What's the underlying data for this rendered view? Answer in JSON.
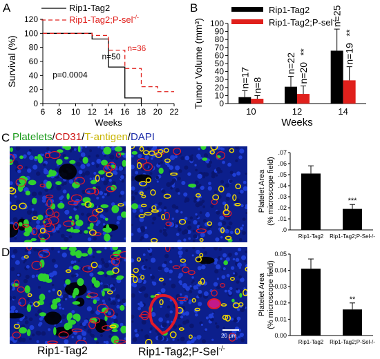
{
  "panel_labels": {
    "a": "A",
    "b": "B",
    "c": "C",
    "d": "D"
  },
  "stain_title": [
    {
      "text": "Platelets",
      "color": "#1a9a1a"
    },
    {
      "text": "/",
      "color": "#000000"
    },
    {
      "text": "CD31",
      "color": "#cc1111"
    },
    {
      "text": "/",
      "color": "#000000"
    },
    {
      "text": "T-antigen",
      "color": "#c8b400"
    },
    {
      "text": "/",
      "color": "#000000"
    },
    {
      "text": "DAPI",
      "color": "#1a2aa8"
    }
  ],
  "bottom_labels": {
    "left": "Rip1-Tag2",
    "right_base": "Rip1-Tag2;P-Sel",
    "right_sup": "-/-"
  },
  "scale_bar_text": "20 μm",
  "colors": {
    "rip1": "#000000",
    "psel": "#e0201c",
    "nuclei": "#0c1f8c",
    "platelets": "#2fd12f",
    "vessels": "#e01a2a",
    "tantigen": "#f0d800"
  },
  "chart_data": [
    {
      "type": "line",
      "id": "survival",
      "xlabel": "Weeks",
      "ylabel": "Survival  (%)",
      "xlim": [
        6,
        22
      ],
      "ylim": [
        0,
        120
      ],
      "xticks": [
        6,
        8,
        10,
        12,
        14,
        16,
        18,
        20,
        22
      ],
      "yticks": [
        0,
        20,
        40,
        60,
        80,
        100,
        120
      ],
      "legend": [
        {
          "name": "Rip1-Tag2",
          "style": "solid",
          "color": "#000000"
        },
        {
          "name": "Rip1-Tag2;P-sel",
          "sup": "-/-",
          "style": "dashed",
          "color": "#e0201c"
        }
      ],
      "series": [
        {
          "name": "Rip1-Tag2",
          "style": "solid",
          "color": "#000000",
          "points": [
            [
              6,
              100
            ],
            [
              12,
              100
            ],
            [
              12,
              92
            ],
            [
              14,
              92
            ],
            [
              14,
              52
            ],
            [
              16,
              52
            ],
            [
              16,
              8
            ],
            [
              18,
              8
            ],
            [
              18,
              0
            ]
          ]
        },
        {
          "name": "Rip1-Tag2;P-sel-/-",
          "style": "dashed",
          "color": "#e0201c",
          "points": [
            [
              6,
              100
            ],
            [
              12,
              100
            ],
            [
              12,
              97
            ],
            [
              14,
              97
            ],
            [
              14,
              76
            ],
            [
              16,
              76
            ],
            [
              16,
              50
            ],
            [
              18,
              50
            ],
            [
              18,
              24
            ],
            [
              20,
              24
            ],
            [
              20,
              17
            ],
            [
              22,
              17
            ]
          ]
        }
      ],
      "annotations": [
        {
          "text": "n=50",
          "x": 13.2,
          "y": 63,
          "color": "#000000"
        },
        {
          "text": "n=36",
          "x": 16.3,
          "y": 75,
          "color": "#e0201c"
        },
        {
          "text": "p=0.0004",
          "x": 7.2,
          "y": 37,
          "color": "#000000"
        }
      ]
    },
    {
      "type": "bar",
      "id": "tumor-volume",
      "xlabel": "Weeks",
      "ylabel": "Tumor Volume (mm³)",
      "categories": [
        "10",
        "12",
        "14"
      ],
      "ylim": [
        0,
        100
      ],
      "yticks": [
        0,
        10,
        20,
        30,
        40,
        50,
        60,
        70,
        80,
        90,
        100
      ],
      "legend": [
        {
          "name": "Rip1-Tag2",
          "color": "#000000"
        },
        {
          "name": "Rip1-Tag2;P-sel",
          "sup": "-/-",
          "color": "#e0201c"
        }
      ],
      "series": [
        {
          "name": "Rip1-Tag2",
          "color": "#000000",
          "values": [
            8,
            21,
            66
          ],
          "errors": [
            8,
            13,
            27
          ],
          "n_labels": [
            "n=17",
            "n=22",
            "n=25"
          ]
        },
        {
          "name": "Rip1-Tag2;P-sel-/-",
          "color": "#e0201c",
          "values": [
            6,
            12,
            29
          ],
          "errors": [
            4,
            10,
            17
          ],
          "n_labels": [
            "n=8",
            "n=20",
            "n=19"
          ],
          "sig": [
            "",
            "**",
            "**"
          ]
        }
      ]
    },
    {
      "type": "bar",
      "id": "platelet-area-c",
      "ylabel_lines": [
        "Platelet Area",
        "(% microscope field)"
      ],
      "categories": [
        "Rip1-Tag2",
        "Rip1-Tag2;P-Sel-/-"
      ],
      "values": [
        0.051,
        0.019
      ],
      "errors": [
        0.007,
        0.004
      ],
      "sig": [
        "",
        "***"
      ],
      "ylim": [
        0,
        0.07
      ],
      "yticks": [
        ".0",
        ".01",
        ".02",
        ".03",
        ".04",
        ".05",
        ".06",
        ".07"
      ],
      "colors": [
        "#000000",
        "#000000"
      ]
    },
    {
      "type": "bar",
      "id": "platelet-area-d",
      "ylabel_lines": [
        "Platelet Area",
        "(% microscope field)"
      ],
      "categories": [
        "Rip1-Tag2",
        "Rip1-Tag2;P-Sel-/-"
      ],
      "values": [
        0.041,
        0.016
      ],
      "errors": [
        0.006,
        0.004
      ],
      "sig": [
        "",
        "**"
      ],
      "ylim": [
        0,
        0.05
      ],
      "yticks": [
        "0.00",
        "0.01",
        "0.02",
        "0.03",
        "0.04",
        "0.05"
      ],
      "colors": [
        "#000000",
        "#000000"
      ]
    }
  ]
}
